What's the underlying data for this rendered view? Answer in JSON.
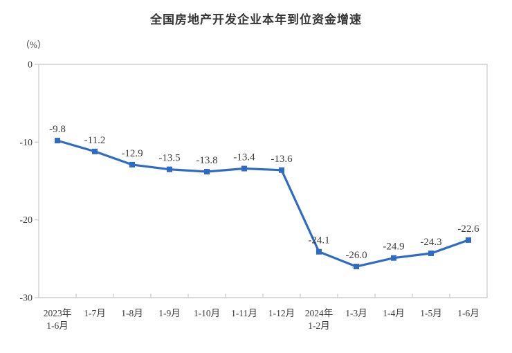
{
  "chart_data": {
    "type": "line",
    "title": "全国房地产开发企业本年到位资金增速",
    "unit_label": "（%）",
    "categories": [
      "2023年\n1-6月",
      "1-7月",
      "1-8月",
      "1-9月",
      "1-10月",
      "1-11月",
      "1-12月",
      "2024年\n1-2月",
      "1-3月",
      "1-4月",
      "1-5月",
      "1-6月"
    ],
    "values": [
      -9.8,
      -11.2,
      -12.9,
      -13.5,
      -13.8,
      -13.4,
      -13.6,
      -24.1,
      -26.0,
      -24.9,
      -24.3,
      -22.6
    ],
    "data_labels": [
      "-9.8",
      "-11.2",
      "-12.9",
      "-13.5",
      "-13.8",
      "-13.4",
      "-13.6",
      "-24.1",
      "-26.0",
      "-24.9",
      "-24.3",
      "-22.6"
    ],
    "ylim": [
      -30,
      0
    ],
    "yticks": [
      0,
      -10,
      -20,
      -30
    ],
    "grid": "off",
    "legend": "none",
    "colors": {
      "line": "#2f6bc5",
      "marker": "#2f6bc5",
      "text": "#3b3b3b",
      "axis": "#c9c9c9",
      "background": "#ffffff"
    }
  }
}
